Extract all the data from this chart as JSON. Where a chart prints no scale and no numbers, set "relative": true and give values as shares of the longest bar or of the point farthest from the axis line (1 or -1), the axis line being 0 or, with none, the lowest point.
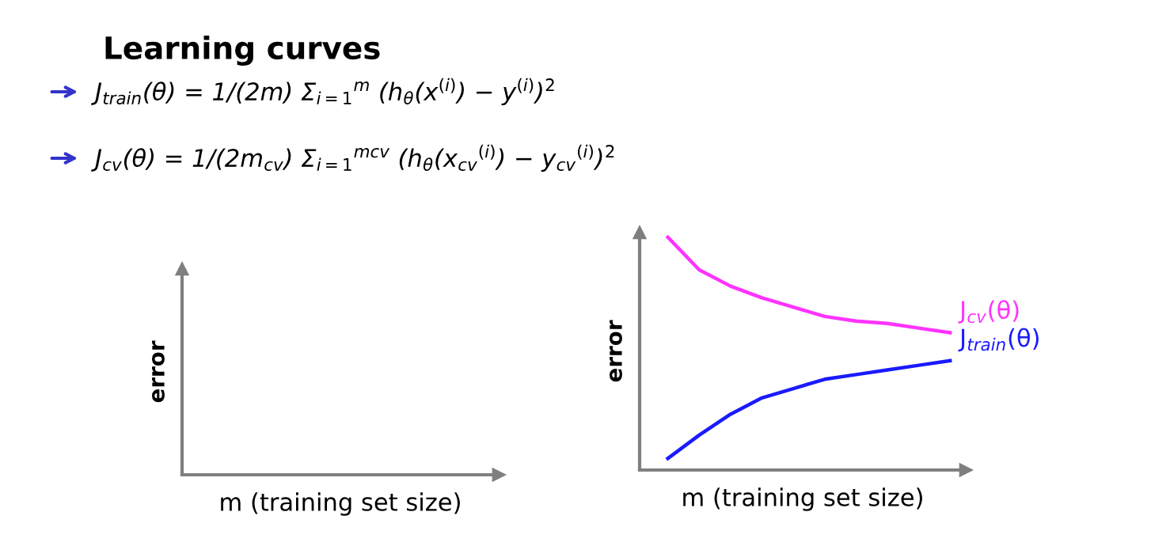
{
  "chart_data": [
    {
      "type": "other",
      "title": "Learning curves",
      "xlabel": "m (training set size)",
      "ylabel": "error",
      "annotations": [
        "J$_{train}$(θ) = 1/(2m) Σ$_{i=1}$$^{m}$ (h$_{θ}$(x$^{(i)}$) − y$^{(i)}$)$^{2}$",
        "J$_{cv}$(θ) = 1/(2m$_{cv}$) Σ$_{i=1}$$^{mcv}$ (h$_{θ}$(x$_{cv}$$^{(i)}$) − y$_{cv}$$^{(i)}$)$^{2}$"
      ]
    },
    {
      "type": "line",
      "relative": true,
      "xlabel": "m (training set size)",
      "ylabel": "error",
      "categories": [
        null,
        null,
        null,
        null,
        null,
        null,
        null,
        null,
        null,
        null
      ],
      "series": [
        {
          "name": "J$_{cv}$(θ)",
          "color": "#ff33ff",
          "values": [
            1,
            0.86,
            0.79,
            0.74,
            0.7,
            0.66,
            0.64,
            0.63,
            0.61,
            0.59
          ]
        },
        {
          "name": "J$_{train}$(θ)",
          "color": "#1a1aff",
          "values": [
            0.05,
            0.15,
            0.24,
            0.31,
            0.35,
            0.39,
            0.41,
            0.43,
            0.45,
            0.47
          ]
        }
      ]
    }
  ]
}
